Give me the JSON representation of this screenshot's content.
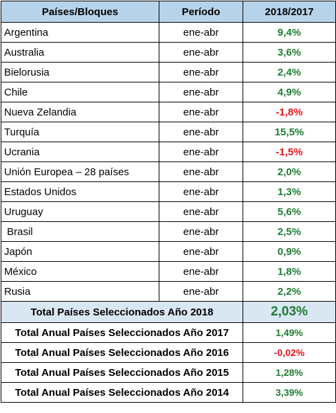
{
  "headers": {
    "country": "Países/Bloques",
    "period": "Período",
    "change": "2018/2017"
  },
  "rows": [
    {
      "country": "Argentina",
      "period": "ene-abr",
      "value": "9,4%",
      "trend": "pos"
    },
    {
      "country": "Australia",
      "period": "ene-abr",
      "value": "3,6%",
      "trend": "pos"
    },
    {
      "country": "Bielorusia",
      "period": "ene-abr",
      "value": "2,4%",
      "trend": "pos"
    },
    {
      "country": "Chile",
      "period": "ene-abr",
      "value": "4,9%",
      "trend": "pos"
    },
    {
      "country": "Nueva Zelandia",
      "period": "ene-abr",
      "value": "-1,8%",
      "trend": "neg"
    },
    {
      "country": "Turquía",
      "period": "ene-abr",
      "value": "15,5%",
      "trend": "pos"
    },
    {
      "country": "Ucrania",
      "period": "ene-abr",
      "value": "-1,5%",
      "trend": "neg"
    },
    {
      "country": "Unión Europea – 28 países",
      "period": "ene-abr",
      "value": "2,0%",
      "trend": "pos"
    },
    {
      "country": "Estados Unidos",
      "period": "ene-abr",
      "value": "1,3%",
      "trend": "pos"
    },
    {
      "country": "Uruguay",
      "period": "ene-abr",
      "value": "5,6%",
      "trend": "pos"
    },
    {
      "country": " Brasil",
      "period": "ene-abr",
      "value": "2,5%",
      "trend": "pos"
    },
    {
      "country": "Japón",
      "period": "ene-abr",
      "value": "0,9%",
      "trend": "pos"
    },
    {
      "country": "México",
      "period": "ene-abr",
      "value": "1,8%",
      "trend": "pos"
    },
    {
      "country": "Rusia",
      "period": "ene-abr",
      "value": "2,2%",
      "trend": "pos"
    }
  ],
  "total_selected": {
    "label": "Total Países Seleccionados Año 2018",
    "value": "2,03%",
    "trend": "pos"
  },
  "annual_totals": [
    {
      "label": "Total Anual Países Seleccionados Año 2017",
      "value": "1,49%",
      "trend": "pos"
    },
    {
      "label": "Total Anual Países Seleccionados Año 2016",
      "value": "-0,02%",
      "trend": "neg"
    },
    {
      "label": "Total Anual Países Seleccionados Año 2015",
      "value": "1,28%",
      "trend": "pos"
    },
    {
      "label": "Total Anual Países Seleccionados Año 2014",
      "value": "3,39%",
      "trend": "pos"
    }
  ],
  "colors": {
    "header_bg": "#b7d3e9",
    "total_bg": "#d9e7f3",
    "positive": "#1e7d32",
    "negative": "#e8151b"
  }
}
